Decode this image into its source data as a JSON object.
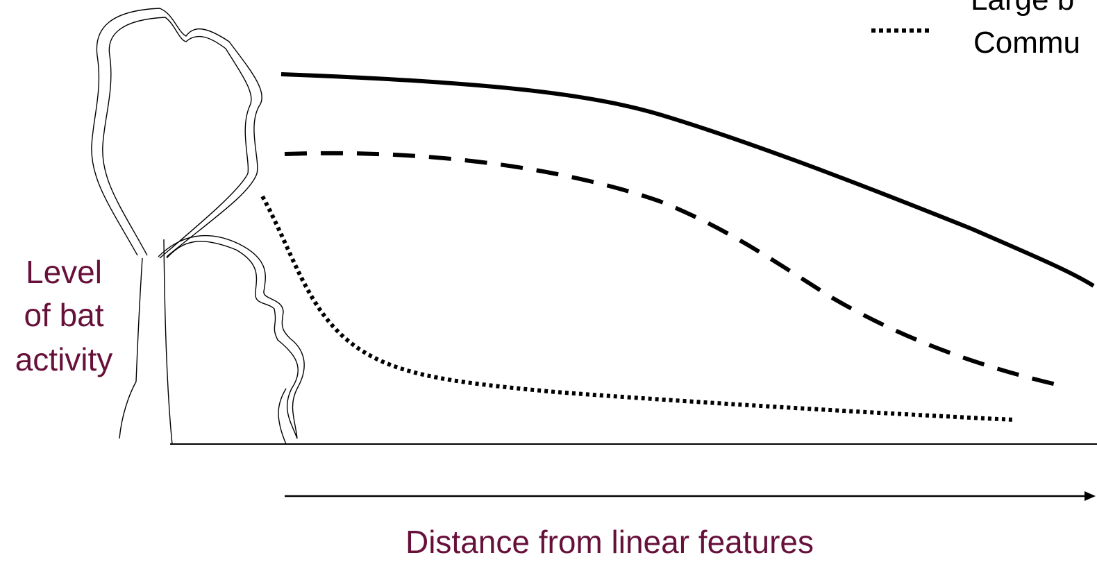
{
  "y_label": [
    "Level",
    "of bat",
    "activity"
  ],
  "x_label": "Distance from linear features",
  "legend": [
    "Large b",
    "Commu"
  ]
}
